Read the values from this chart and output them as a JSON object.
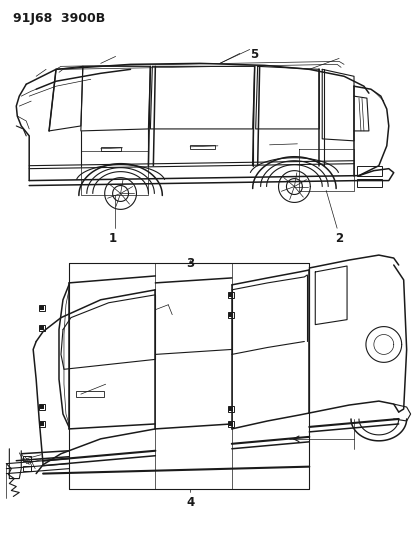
{
  "title_code": "91J68  3900B",
  "background_color": "#ffffff",
  "label1": "1",
  "label2": "2",
  "label3": "3",
  "label4": "4",
  "label5": "5",
  "fig_width": 4.14,
  "fig_height": 5.33,
  "dpi": 100
}
